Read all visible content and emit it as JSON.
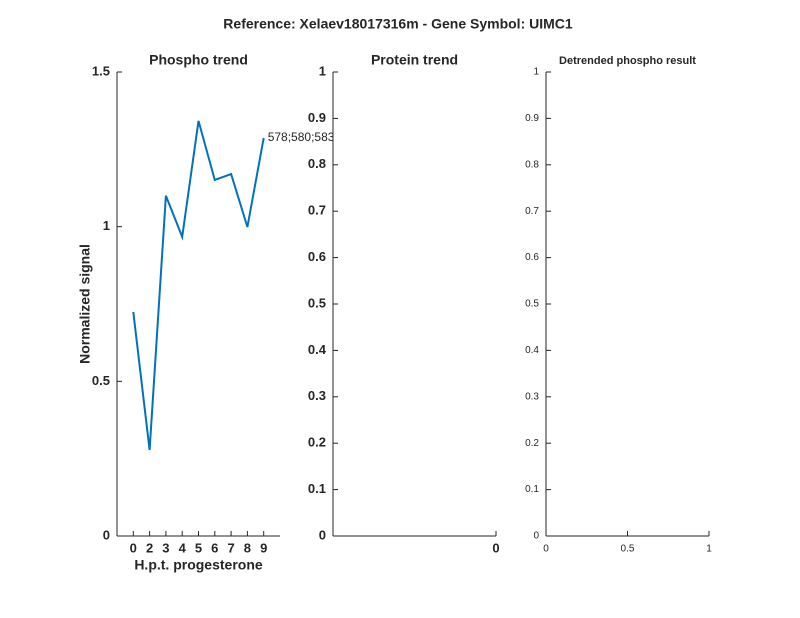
{
  "title": "Reference:  Xelaev18017316m - Gene Symbol:  UIMC1",
  "chart_data": [
    {
      "type": "line",
      "title": "Phospho trend",
      "x_label": "H.p.t. progesterone",
      "y_label": "Normalized signal",
      "categories": [
        "0",
        "2",
        "3",
        "4",
        "5",
        "6",
        "7",
        "8",
        "9"
      ],
      "values": [
        0.724,
        0.278,
        1.1,
        0.967,
        1.342,
        1.151,
        1.17,
        0.999,
        1.287
      ],
      "color": "#0072bd",
      "annotation": "578;580;583",
      "ylim": [
        0,
        1.5
      ],
      "yticks": [
        0,
        0.5,
        1,
        1.5
      ]
    },
    {
      "type": "line",
      "title": "Protein trend",
      "xlim": [
        -1,
        0
      ],
      "xticks": [
        0
      ],
      "ylim": [
        0,
        1
      ],
      "yticks": [
        0,
        0.1,
        0.2,
        0.3,
        0.4,
        0.5,
        0.6,
        0.7,
        0.8,
        0.9,
        1
      ]
    },
    {
      "type": "line",
      "title": "Detrended phospho result",
      "xlim": [
        0,
        1
      ],
      "xticks": [
        0,
        0.5,
        1
      ],
      "ylim": [
        0,
        1
      ],
      "yticks": [
        0,
        0.1,
        0.2,
        0.3,
        0.4,
        0.5,
        0.6,
        0.7,
        0.8,
        0.9,
        1
      ]
    }
  ]
}
